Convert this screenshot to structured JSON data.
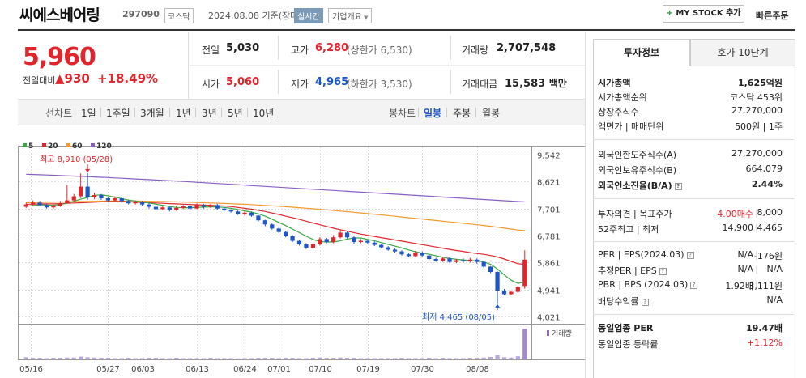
{
  "header": {
    "title": "씨에스베어링",
    "code": "297090",
    "market": "코스닥",
    "date": "2024.08.08 기준(장마감)",
    "realtime": "실시간",
    "company_info": "기업개요",
    "mystock": "MY STOCK 추가",
    "quick_order": "빠른주문"
  },
  "price": {
    "current": "5,960",
    "change_label": "전일대비",
    "change_value": "930",
    "change_pct": "+18.49%"
  },
  "summary": {
    "prev_label": "전일",
    "prev": "5,030",
    "high_label": "고가",
    "high": "6,280",
    "upper_limit": "(상한가 6,530)",
    "volume_label": "거래량",
    "volume": "2,707,548",
    "open_label": "시가",
    "open": "5,060",
    "low_label": "저가",
    "low": "4,965",
    "lower_limit": "(하한가 3,530)",
    "amount_label": "거래대금",
    "amount": "15,583",
    "amount_unit": "백만"
  },
  "toolbar": {
    "line_chart": "선차트",
    "periods": [
      "1일",
      "1주일",
      "3개월",
      "1년",
      "3년",
      "5년",
      "10년"
    ],
    "candle_chart": "봉차트",
    "candle_periods": [
      "일봉",
      "주봉",
      "월봉"
    ],
    "active_candle": "일봉"
  },
  "chart_data": {
    "type": "candlestick",
    "legend": [
      {
        "name": "5",
        "color": "#3aa845"
      },
      {
        "name": "20",
        "color": "#e0262c"
      },
      {
        "name": "60",
        "color": "#f09a2a"
      },
      {
        "name": "120",
        "color": "#8a5fc4"
      }
    ],
    "y_ticks": [
      "9,542",
      "8,621",
      "7,701",
      "6,781",
      "5,861",
      "4,941",
      "4,021"
    ],
    "ylim": [
      4021,
      9542
    ],
    "x_ticks": [
      "05/16",
      "05/27",
      "06/03",
      "06/13",
      "06/24",
      "07/01",
      "07/10",
      "07/19",
      "07/30",
      "08/08"
    ],
    "high_annotation": "최고 8,910 (05/28)",
    "low_annotation": "최저 4,465 (08/05)",
    "volume_label": "거래량",
    "candles": [
      [
        7760,
        7840,
        7900,
        7720
      ],
      [
        7840,
        7900,
        7980,
        7800
      ],
      [
        7900,
        7820,
        7960,
        7780
      ],
      [
        7820,
        7740,
        7860,
        7700
      ],
      [
        7740,
        7800,
        7840,
        7700
      ],
      [
        7800,
        7880,
        7960,
        7760
      ],
      [
        7880,
        7980,
        8500,
        7880
      ],
      [
        7980,
        8120,
        8200,
        7940
      ],
      [
        8120,
        8450,
        8900,
        8060
      ],
      [
        8450,
        8080,
        8910,
        8000
      ],
      [
        8080,
        8160,
        8240,
        8020
      ],
      [
        8160,
        8050,
        8200,
        8000
      ],
      [
        8050,
        7980,
        8100,
        7920
      ],
      [
        7980,
        8050,
        8120,
        7940
      ],
      [
        8050,
        7960,
        8100,
        7900
      ],
      [
        7960,
        7880,
        8000,
        7840
      ],
      [
        7880,
        7920,
        7980,
        7840
      ],
      [
        7920,
        7840,
        7960,
        7800
      ],
      [
        7840,
        7760,
        7880,
        7700
      ],
      [
        7760,
        7680,
        7800,
        7640
      ],
      [
        7680,
        7740,
        7780,
        7640
      ],
      [
        7740,
        7660,
        7780,
        7600
      ],
      [
        7660,
        7720,
        7800,
        7620
      ],
      [
        7720,
        7780,
        7820,
        7680
      ],
      [
        7780,
        7700,
        7820,
        7660
      ],
      [
        7700,
        7820,
        7880,
        7680
      ],
      [
        7820,
        7760,
        7860,
        7700
      ],
      [
        7760,
        7820,
        7860,
        7720
      ],
      [
        7820,
        7700,
        7860,
        7660
      ],
      [
        7700,
        7640,
        7740,
        7600
      ],
      [
        7640,
        7600,
        7680,
        7560
      ],
      [
        7600,
        7520,
        7640,
        7480
      ],
      [
        7520,
        7560,
        7620,
        7460
      ],
      [
        7560,
        7460,
        7600,
        7420
      ],
      [
        7460,
        7300,
        7480,
        7260
      ],
      [
        7300,
        7160,
        7320,
        7100
      ],
      [
        7160,
        7020,
        7200,
        6980
      ],
      [
        7020,
        6900,
        7060,
        6860
      ],
      [
        6900,
        6760,
        6940,
        6720
      ],
      [
        6760,
        6600,
        6800,
        6560
      ],
      [
        6600,
        6480,
        6640,
        6440
      ],
      [
        6480,
        6360,
        6520,
        6320
      ],
      [
        6360,
        6480,
        6540,
        6320
      ],
      [
        6480,
        6660,
        6720,
        6440
      ],
      [
        6660,
        6560,
        6700,
        6520
      ],
      [
        6560,
        6720,
        6800,
        6520
      ],
      [
        6720,
        6880,
        6980,
        6680
      ],
      [
        6880,
        6720,
        6920,
        6680
      ],
      [
        6720,
        6560,
        6760,
        6500
      ],
      [
        6560,
        6600,
        6660,
        6520
      ],
      [
        6600,
        6540,
        6640,
        6500
      ],
      [
        6540,
        6460,
        6580,
        6420
      ],
      [
        6460,
        6380,
        6500,
        6340
      ],
      [
        6380,
        6300,
        6420,
        6260
      ],
      [
        6300,
        6240,
        6340,
        6200
      ],
      [
        6240,
        6140,
        6280,
        6100
      ],
      [
        6140,
        6080,
        6180,
        6040
      ],
      [
        6080,
        6200,
        6260,
        6040
      ],
      [
        6200,
        6100,
        6240,
        6060
      ],
      [
        6100,
        5980,
        6140,
        5940
      ],
      [
        5980,
        5920,
        6020,
        5880
      ],
      [
        5920,
        6000,
        6060,
        5880
      ],
      [
        6000,
        5880,
        6040,
        5840
      ],
      [
        5880,
        5940,
        5980,
        5840
      ],
      [
        5940,
        5900,
        6000,
        5860
      ],
      [
        5900,
        5960,
        6020,
        5860
      ],
      [
        5960,
        5880,
        6000,
        5820
      ],
      [
        5880,
        5720,
        5900,
        5680
      ],
      [
        5720,
        5540,
        5740,
        5500
      ],
      [
        5540,
        4900,
        5560,
        4465
      ],
      [
        4900,
        4780,
        4960,
        4740
      ],
      [
        4780,
        4860,
        4900,
        4760
      ],
      [
        4860,
        5030,
        5060,
        4820
      ],
      [
        5060,
        5960,
        6280,
        4965
      ]
    ],
    "ma5": [
      7780,
      7800,
      7830,
      7820,
      7810,
      7840,
      7880,
      7950,
      8020,
      8080,
      8150,
      8170,
      8140,
      8090,
      8040,
      7990,
      7960,
      7920,
      7890,
      7850,
      7810,
      7770,
      7740,
      7730,
      7730,
      7740,
      7750,
      7760,
      7760,
      7740,
      7710,
      7670,
      7620,
      7580,
      7520,
      7440,
      7340,
      7230,
      7120,
      7000,
      6880,
      6760,
      6650,
      6580,
      6560,
      6560,
      6600,
      6660,
      6700,
      6700,
      6650,
      6600,
      6540,
      6480,
      6420,
      6360,
      6290,
      6230,
      6180,
      6140,
      6090,
      6040,
      6000,
      5970,
      5950,
      5930,
      5920,
      5880,
      5800,
      5640,
      5440,
      5260,
      5150,
      5200
    ],
    "ma20": [
      7850,
      7850,
      7860,
      7860,
      7860,
      7870,
      7880,
      7890,
      7900,
      7910,
      7920,
      7930,
      7940,
      7940,
      7940,
      7930,
      7920,
      7910,
      7900,
      7890,
      7880,
      7870,
      7860,
      7850,
      7840,
      7830,
      7820,
      7810,
      7800,
      7790,
      7770,
      7740,
      7710,
      7680,
      7640,
      7600,
      7550,
      7500,
      7440,
      7390,
      7330,
      7270,
      7210,
      7150,
      7090,
      7030,
      6980,
      6930,
      6880,
      6830,
      6790,
      6750,
      6710,
      6670,
      6630,
      6590,
      6550,
      6510,
      6470,
      6430,
      6390,
      6350,
      6310,
      6270,
      6240,
      6200,
      6170,
      6140,
      6100,
      6050,
      5980,
      5900,
      5820,
      5800
    ],
    "ma60": [
      7900,
      7905,
      7910,
      7915,
      7920,
      7925,
      7930,
      7935,
      7940,
      7945,
      7950,
      7955,
      7958,
      7960,
      7960,
      7960,
      7958,
      7955,
      7950,
      7945,
      7940,
      7935,
      7930,
      7922,
      7915,
      7908,
      7900,
      7892,
      7884,
      7876,
      7866,
      7856,
      7846,
      7835,
      7822,
      7808,
      7794,
      7780,
      7764,
      7748,
      7730,
      7712,
      7694,
      7676,
      7656,
      7636,
      7616,
      7596,
      7574,
      7552,
      7530,
      7508,
      7486,
      7462,
      7438,
      7414,
      7390,
      7366,
      7342,
      7318,
      7294,
      7270,
      7246,
      7222,
      7198,
      7174,
      7150,
      7124,
      7096,
      7066,
      7034,
      7002,
      6970,
      6950
    ],
    "ma120": [
      8870,
      8862,
      8854,
      8846,
      8838,
      8830,
      8820,
      8810,
      8800,
      8790,
      8780,
      8770,
      8760,
      8748,
      8736,
      8724,
      8712,
      8700,
      8688,
      8676,
      8664,
      8652,
      8640,
      8626,
      8612,
      8598,
      8584,
      8570,
      8556,
      8542,
      8528,
      8514,
      8500,
      8486,
      8472,
      8458,
      8444,
      8430,
      8416,
      8402,
      8388,
      8374,
      8360,
      8346,
      8332,
      8318,
      8304,
      8290,
      8276,
      8262,
      8248,
      8234,
      8220,
      8206,
      8192,
      8178,
      8164,
      8150,
      8136,
      8122,
      8108,
      8094,
      8080,
      8066,
      8052,
      8038,
      8024,
      8010,
      7996,
      7982,
      7968,
      7954,
      7940,
      7926
    ],
    "volume": [
      0.07,
      0.05,
      0.05,
      0.04,
      0.05,
      0.05,
      0.06,
      0.06,
      0.09,
      0.07,
      0.06,
      0.05,
      0.05,
      0.04,
      0.04,
      0.05,
      0.04,
      0.04,
      0.05,
      0.05,
      0.04,
      0.04,
      0.05,
      0.04,
      0.04,
      0.04,
      0.04,
      0.05,
      0.04,
      0.04,
      0.04,
      0.03,
      0.04,
      0.04,
      0.05,
      0.05,
      0.05,
      0.04,
      0.05,
      0.05,
      0.04,
      0.04,
      0.05,
      0.06,
      0.05,
      0.05,
      0.06,
      0.05,
      0.05,
      0.04,
      0.04,
      0.04,
      0.04,
      0.04,
      0.04,
      0.05,
      0.04,
      0.04,
      0.04,
      0.05,
      0.04,
      0.05,
      0.04,
      0.04,
      0.04,
      0.05,
      0.05,
      0.06,
      0.08,
      0.14,
      0.07,
      0.06,
      0.1,
      1.0
    ]
  },
  "panel": {
    "tab_invest": "투자정보",
    "tab_quote": "호가 10단계",
    "rows1": [
      {
        "label": "시가총액",
        "value": "1,625억원",
        "bold": true
      },
      {
        "label": "시가총액순위",
        "value": "코스닥 453위"
      },
      {
        "label": "상장주식수",
        "value": "27,270,000"
      },
      {
        "label": "액면가 | 매매단위",
        "value": "500원 | 1주"
      }
    ],
    "rows2": [
      {
        "label": "외국인한도주식수(A)",
        "value": "27,270,000"
      },
      {
        "label": "외국인보유주식수(B)",
        "value": "664,079"
      },
      {
        "label": "외국인소진율(B/A)",
        "value": "2.44%",
        "bold": true
      }
    ],
    "rows3": [
      {
        "label": "투자의견 | 목표주가",
        "value_a": "4.00매수",
        "value_b": "8,000"
      },
      {
        "label": "52주최고 | 최저",
        "value_a": "14,900",
        "value_b": "4,465"
      }
    ],
    "rows4": [
      {
        "label": "PER | EPS(2024.03)",
        "value_a": "N/A",
        "value_b": "-176원"
      },
      {
        "label": "추정PER | EPS",
        "value_a": "N/A",
        "value_b": "N/A"
      },
      {
        "label": "PBR | BPS (2024.03)",
        "value_a": "1.92배",
        "value_b": "3,111원"
      },
      {
        "label": "배당수익률",
        "value_a": "",
        "value_b": "N/A"
      }
    ],
    "rows5": [
      {
        "label": "동일업종 PER",
        "value": "19.47배",
        "bold": true
      },
      {
        "label": "동일업종 등락률",
        "value": "+1.12%",
        "red": true
      }
    ]
  }
}
